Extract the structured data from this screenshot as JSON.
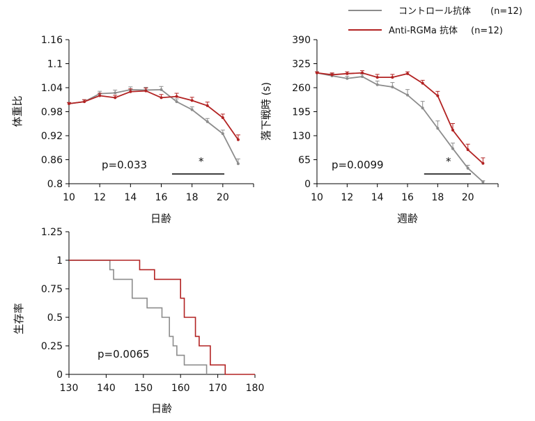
{
  "colors": {
    "control": "#8c8c8c",
    "anti": "#b22222",
    "axis": "#000000"
  },
  "legend": [
    {
      "label": "コントロール抗体",
      "n": "(n=12)",
      "color": "#8c8c8c"
    },
    {
      "label": "Anti-RGMa 抗体",
      "n": "(n=12)",
      "color": "#b22222"
    }
  ],
  "chart_data": [
    {
      "type": "line",
      "panel": "body-weight",
      "ylabel": "体重比",
      "xlabel": "日齢",
      "xlim": [
        10,
        22
      ],
      "ylim": [
        0.8,
        1.16
      ],
      "xticks": [
        "10",
        "12",
        "14",
        "16",
        "18",
        "20"
      ],
      "yticks": [
        "0.8",
        "0.86",
        "0.92",
        "0.98",
        "1.04",
        "1.1",
        "1.16"
      ],
      "pvalue": "p=0.033",
      "significance": "*",
      "sig_range": [
        16.7,
        20.1
      ],
      "series": [
        {
          "name": "コントロール抗体",
          "x": [
            10,
            11,
            12,
            13,
            14,
            15,
            16,
            17,
            18,
            19,
            20,
            21
          ],
          "y": [
            1.0,
            1.005,
            1.025,
            1.027,
            1.035,
            1.034,
            1.035,
            1.005,
            0.985,
            0.955,
            0.925,
            0.85
          ],
          "err": [
            0.003,
            0.005,
            0.006,
            0.007,
            0.007,
            0.007,
            0.008,
            0.007,
            0.007,
            0.008,
            0.009,
            0.012
          ]
        },
        {
          "name": "Anti-RGMa 抗体",
          "x": [
            10,
            11,
            12,
            13,
            14,
            15,
            16,
            17,
            18,
            19,
            20,
            21
          ],
          "y": [
            1.0,
            1.005,
            1.02,
            1.015,
            1.03,
            1.032,
            1.015,
            1.018,
            1.008,
            0.995,
            0.965,
            0.91
          ],
          "err": [
            0.003,
            0.005,
            0.006,
            0.006,
            0.007,
            0.007,
            0.008,
            0.008,
            0.008,
            0.009,
            0.009,
            0.012
          ]
        }
      ]
    },
    {
      "type": "line",
      "panel": "rotarod",
      "ylabel": "落下戦時 (s)",
      "xlabel": "週齢",
      "xlim": [
        10,
        22
      ],
      "ylim": [
        0,
        390
      ],
      "xticks": [
        "10",
        "12",
        "14",
        "16",
        "18",
        "20"
      ],
      "yticks": [
        "0",
        "65",
        "130",
        "195",
        "260",
        "325",
        "390"
      ],
      "pvalue": "p=0.0099",
      "significance": "*",
      "sig_range": [
        17.1,
        20.2
      ],
      "series": [
        {
          "name": "コントロール抗体",
          "x": [
            10,
            11,
            12,
            13,
            14,
            15,
            16,
            17,
            18,
            19,
            20,
            21
          ],
          "y": [
            300,
            292,
            285,
            290,
            268,
            262,
            240,
            205,
            150,
            95,
            42,
            5
          ],
          "err": [
            3,
            6,
            6,
            7,
            10,
            12,
            15,
            18,
            20,
            15,
            8,
            3
          ]
        },
        {
          "name": "Anti-RGMa 抗体",
          "x": [
            10,
            11,
            12,
            13,
            14,
            15,
            16,
            17,
            18,
            19,
            20,
            21
          ],
          "y": [
            300,
            295,
            298,
            300,
            288,
            288,
            298,
            272,
            238,
            145,
            92,
            55
          ],
          "err": [
            3,
            5,
            5,
            6,
            8,
            8,
            5,
            8,
            12,
            18,
            15,
            15
          ]
        }
      ]
    },
    {
      "type": "line",
      "panel": "survival",
      "ylabel": "生存率",
      "xlabel": "日齢",
      "xlim": [
        130,
        180
      ],
      "ylim": [
        0,
        1.25
      ],
      "xticks": [
        "130",
        "140",
        "150",
        "160",
        "170",
        "180"
      ],
      "yticks": [
        "0",
        "0.25",
        "0.5",
        "0.75",
        "1",
        "1.25"
      ],
      "pvalue": "p=0.0065",
      "series": [
        {
          "name": "コントロール抗体",
          "x": [
            130,
            141,
            141,
            142,
            142,
            147,
            147,
            151,
            151,
            155,
            155,
            157,
            157,
            158,
            158,
            159,
            159,
            161,
            161,
            167,
            167
          ],
          "y": [
            1,
            1,
            0.917,
            0.917,
            0.833,
            0.833,
            0.667,
            0.667,
            0.583,
            0.583,
            0.5,
            0.5,
            0.333,
            0.333,
            0.25,
            0.25,
            0.167,
            0.167,
            0.083,
            0.083,
            0
          ]
        },
        {
          "name": "Anti-RGMa 抗体",
          "x": [
            130,
            149,
            149,
            153,
            153,
            160,
            160,
            161,
            161,
            164,
            164,
            165,
            165,
            168,
            168,
            172,
            172,
            180
          ],
          "y": [
            1,
            1,
            0.917,
            0.917,
            0.833,
            0.833,
            0.667,
            0.667,
            0.5,
            0.5,
            0.333,
            0.333,
            0.25,
            0.25,
            0.083,
            0.083,
            0,
            0
          ]
        }
      ]
    }
  ]
}
